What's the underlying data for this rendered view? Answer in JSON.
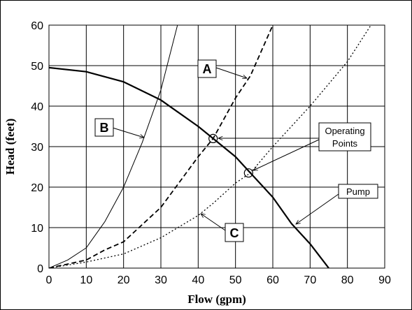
{
  "chart_data": {
    "type": "line",
    "xlabel": "Flow (gpm)",
    "ylabel": "Head (feet)",
    "xlim": [
      0,
      90
    ],
    "ylim": [
      0,
      60
    ],
    "xticks": [
      0,
      10,
      20,
      30,
      40,
      50,
      60,
      70,
      80,
      90
    ],
    "yticks": [
      0,
      10,
      20,
      30,
      40,
      50,
      60
    ],
    "grid": true,
    "series": [
      {
        "name": "Pump",
        "style": "solid-thick",
        "x": [
          0,
          10,
          20,
          30,
          40,
          44,
          50,
          54,
          60,
          65,
          70,
          75
        ],
        "y": [
          49.5,
          48.5,
          46,
          41.5,
          35,
          32,
          27.5,
          23.5,
          17.5,
          11,
          6,
          0
        ]
      },
      {
        "name": "A",
        "style": "dashed",
        "x": [
          0,
          10,
          15,
          20,
          30,
          40,
          44,
          50,
          54,
          60
        ],
        "y": [
          0,
          2,
          4.5,
          6.5,
          15,
          27.5,
          32,
          42,
          47.5,
          60
        ]
      },
      {
        "name": "B",
        "style": "solid-thin",
        "x": [
          0,
          5,
          10,
          15,
          20,
          25,
          30,
          35
        ],
        "y": [
          0,
          2,
          5,
          11.5,
          20,
          31,
          44,
          62
        ]
      },
      {
        "name": "C",
        "style": "dotted",
        "x": [
          0,
          10,
          20,
          30,
          40,
          44,
          50,
          54,
          60,
          70,
          80,
          87
        ],
        "y": [
          0,
          1.5,
          3.5,
          7.5,
          13,
          16,
          21,
          23.5,
          30,
          40,
          51,
          61
        ]
      }
    ],
    "operating_points": [
      {
        "x": 44,
        "y": 32
      },
      {
        "x": 53.5,
        "y": 23.5
      }
    ],
    "annotations": {
      "A": "A",
      "B": "B",
      "C": "C",
      "operating_points_line1": "Operating",
      "operating_points_line2": "Points",
      "pump": "Pump"
    }
  }
}
